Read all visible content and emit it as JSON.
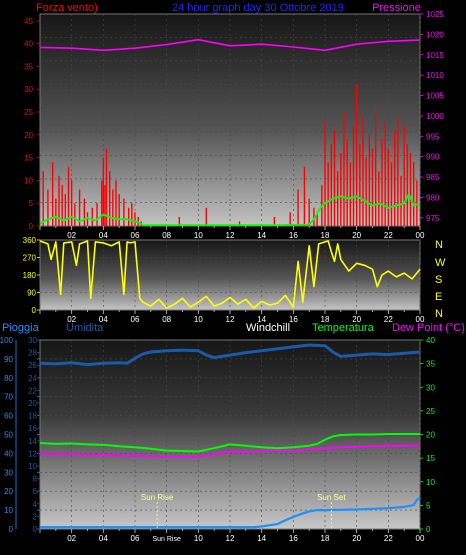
{
  "headers": {
    "wind_speed": "Forza vento)",
    "subtitle": "24 hour graph day 30 Ottobre 2019",
    "pressure": "Pressione",
    "rain": "Pioggia",
    "humidity": "Umidita",
    "windchill": "Windchill",
    "temperature": "Temperatura",
    "dew_point": "Dew Point (°C)",
    "sun_rise": "Sun Rise",
    "sun_set": "Sun Set"
  },
  "compass": [
    "N",
    "W",
    "S",
    "E",
    "N"
  ],
  "colors": {
    "wind": "#ff0000",
    "wind_avg": "#00ff00",
    "pressure": "#ff00ff",
    "direction": "#ffff00",
    "humidity": "#1a5aa8",
    "rain": "#1e90ff",
    "temperature": "#00ff00",
    "dew_point": "#ff00ff",
    "sun": "#ffff99"
  },
  "chart_data": [
    {
      "type": "line",
      "panel": "wind",
      "x_ticks": [
        "02",
        "04",
        "06",
        "08",
        "10",
        "12",
        "14",
        "16",
        "18",
        "20",
        "22",
        "00"
      ],
      "y_left_ticks": [
        "0",
        "5",
        "10",
        "15",
        "20",
        "25",
        "30",
        "35",
        "40",
        "45"
      ],
      "y_right_ticks": [
        "975",
        "980",
        "985",
        "990",
        "995",
        "1000",
        "1005",
        "1010",
        "1015",
        "1020",
        "1025"
      ],
      "ylim_left": [
        0,
        46.5
      ],
      "ylim_right": [
        973,
        1025
      ],
      "xlim": [
        0,
        24
      ],
      "series": [
        {
          "axis": "left",
          "color": "#ff0000",
          "style": "bars",
          "x": [
            0.2,
            0.5,
            0.8,
            1.0,
            1.2,
            1.4,
            1.6,
            1.8,
            2.0,
            2.2,
            2.5,
            2.8,
            3.0,
            3.3,
            3.6,
            3.9,
            4.0,
            4.1,
            4.2,
            4.4,
            4.6,
            4.8,
            5.0,
            5.3,
            5.6,
            5.8,
            6.0,
            6.2,
            6.4,
            8.8,
            10.5,
            12.6,
            14.8,
            15.8,
            16.3,
            16.7,
            17.0,
            17.3,
            17.5,
            17.8,
            18.0,
            18.2,
            18.4,
            18.6,
            18.8,
            19.0,
            19.2,
            19.4,
            19.6,
            19.8,
            20.0,
            20.2,
            20.4,
            20.6,
            20.8,
            21.0,
            21.2,
            21.4,
            21.6,
            21.8,
            22.0,
            22.2,
            22.4,
            22.6,
            22.8,
            23.0,
            23.2,
            23.4,
            23.6,
            23.8
          ],
          "y": [
            12,
            8,
            14,
            6,
            11,
            9,
            7,
            13,
            10,
            5,
            8,
            6,
            3,
            4,
            5,
            10,
            15,
            9,
            17,
            12,
            8,
            10,
            7,
            6,
            4,
            5,
            3,
            2,
            1,
            2,
            4,
            1,
            2,
            3,
            8,
            13,
            6,
            4,
            3,
            9,
            23,
            14,
            18,
            21,
            12,
            16,
            25,
            19,
            14,
            22,
            31,
            18,
            24,
            15,
            20,
            17,
            26,
            12,
            19,
            23,
            17,
            14,
            21,
            24,
            11,
            22,
            18,
            16,
            14,
            10
          ]
        },
        {
          "axis": "left",
          "color": "#00ff00",
          "style": "line",
          "x": [
            0,
            0.5,
            1,
            1.5,
            2,
            2.5,
            3,
            3.5,
            4,
            4.5,
            5,
            5.5,
            6,
            6.4,
            6.5,
            12,
            15,
            17,
            17.3,
            17.7,
            18,
            18.5,
            19,
            19.5,
            20,
            20.5,
            21,
            21.5,
            22,
            22.5,
            23,
            23.3,
            23.6,
            24
          ],
          "y": [
            0.5,
            1.5,
            2,
            1.2,
            2,
            1,
            1.8,
            1.2,
            2.5,
            1.8,
            1.5,
            1.5,
            1,
            0.5,
            0.2,
            0.2,
            0.2,
            0.3,
            1.5,
            4,
            5,
            6,
            6.5,
            6,
            6.5,
            5.5,
            4.5,
            5,
            4,
            4.5,
            5,
            7,
            4.5,
            5
          ]
        },
        {
          "axis": "right",
          "color": "#ff00ff",
          "style": "line",
          "x": [
            0,
            2,
            4,
            6,
            8,
            10,
            12,
            14,
            16,
            18,
            20,
            22,
            24
          ],
          "y": [
            1016.8,
            1016.6,
            1016.1,
            1016.6,
            1017.5,
            1018.7,
            1017.2,
            1017.6,
            1016.9,
            1016.1,
            1017.6,
            1018.3,
            1018.6
          ]
        }
      ]
    },
    {
      "type": "line",
      "panel": "wind_direction",
      "x_ticks": [
        "02",
        "04",
        "06",
        "08",
        "10",
        "12",
        "14",
        "16",
        "18",
        "20",
        "22",
        "00"
      ],
      "y_ticks": [
        "0",
        "90",
        "180",
        "270",
        "360"
      ],
      "ylim": [
        0,
        360
      ],
      "xlim": [
        0,
        24
      ],
      "series": [
        {
          "color": "#ffff00",
          "x": [
            0,
            0.5,
            0.7,
            1,
            1.3,
            1.5,
            2,
            2.3,
            2.5,
            3,
            3.2,
            3.5,
            4,
            4.5,
            5,
            5.3,
            5.5,
            5.7,
            6,
            6.3,
            6.5,
            7,
            7.5,
            8,
            8.5,
            9,
            9.5,
            10,
            10.5,
            11,
            11.5,
            12,
            12.5,
            13,
            13.5,
            14,
            14.5,
            15,
            15.5,
            16,
            16.3,
            16.6,
            17,
            17.3,
            17.6,
            18,
            18.2,
            18.4,
            18.6,
            18.8,
            19,
            19.5,
            20,
            20.5,
            21,
            21.3,
            21.6,
            22,
            22.5,
            23,
            23.5,
            24
          ],
          "y": [
            355,
            340,
            260,
            350,
            80,
            345,
            350,
            230,
            340,
            355,
            60,
            350,
            345,
            330,
            350,
            80,
            350,
            345,
            350,
            60,
            40,
            20,
            55,
            10,
            30,
            60,
            15,
            40,
            70,
            20,
            35,
            65,
            30,
            55,
            10,
            45,
            25,
            35,
            75,
            15,
            250,
            40,
            330,
            120,
            340,
            350,
            355,
            300,
            250,
            340,
            260,
            200,
            240,
            230,
            210,
            120,
            180,
            200,
            170,
            190,
            160,
            210
          ]
        }
      ]
    },
    {
      "type": "line",
      "panel": "climate",
      "x_ticks": [
        "02",
        "04",
        "06",
        "Sun Rise",
        "10",
        "12",
        "14",
        "16",
        "18",
        "20",
        "22",
        "00"
      ],
      "y_far_left_ticks": [
        "0",
        "10",
        "20",
        "30",
        "40",
        "50",
        "60",
        "70",
        "80",
        "90",
        "100"
      ],
      "y_left_ticks": [
        "0",
        "2",
        "4",
        "6",
        "8",
        "10",
        "12",
        "14",
        "16",
        "18",
        "20",
        "22",
        "24",
        "26",
        "28",
        "30"
      ],
      "y_right_ticks": [
        "0",
        "5",
        "10",
        "15",
        "20",
        "25",
        "30",
        "35",
        "40"
      ],
      "ylim_left": [
        0,
        30
      ],
      "ylim_right": [
        0,
        40
      ],
      "xlim": [
        0,
        24
      ],
      "annotations": [
        {
          "label": "Sun Rise",
          "x": 7.4
        },
        {
          "label": "Sun Set",
          "x": 18.4
        }
      ],
      "series": [
        {
          "name": "Umidita",
          "axis": "left",
          "color": "#1a5aa8",
          "x": [
            0,
            1,
            2,
            3,
            4,
            5,
            5.5,
            6,
            6.5,
            7,
            8,
            9,
            10,
            10.5,
            11,
            12,
            13,
            14,
            15,
            16,
            17,
            18,
            18.5,
            19,
            20,
            21,
            22,
            23,
            24
          ],
          "y": [
            26.3,
            26.2,
            26.4,
            26.1,
            26.3,
            26.4,
            26.3,
            27.1,
            27.8,
            28.1,
            28.3,
            28.4,
            28.3,
            27.6,
            27.2,
            27.6,
            28.0,
            28.3,
            28.6,
            28.9,
            29.2,
            29.1,
            28.1,
            27.4,
            27.6,
            27.8,
            27.7,
            27.9,
            28.1
          ]
        },
        {
          "name": "Temperatura",
          "axis": "right",
          "color": "#00ff00",
          "x": [
            0,
            1,
            2,
            3,
            4,
            5,
            6,
            7,
            8,
            9,
            10,
            11,
            12,
            13,
            14,
            15,
            16,
            17,
            17.5,
            18,
            18.5,
            19,
            20,
            21,
            22,
            23,
            24
          ],
          "y": [
            18.2,
            18.0,
            18.1,
            17.9,
            17.8,
            17.5,
            17.3,
            17.0,
            16.6,
            16.5,
            16.4,
            17.1,
            17.9,
            17.6,
            17.3,
            17.1,
            17.3,
            17.6,
            18.0,
            18.9,
            19.6,
            19.9,
            20.0,
            20.0,
            20.1,
            20.1,
            20.1
          ]
        },
        {
          "name": "Dew Point",
          "axis": "right",
          "color": "#ff00ff",
          "x": [
            0,
            1,
            2,
            3,
            4,
            5,
            6,
            7,
            8,
            9,
            10,
            11,
            12,
            13,
            14,
            15,
            16,
            17,
            18,
            19,
            20,
            21,
            22,
            23,
            24
          ],
          "y": [
            15.9,
            15.8,
            15.8,
            15.7,
            15.7,
            15.6,
            15.5,
            15.4,
            15.3,
            15.3,
            15.3,
            15.9,
            16.4,
            16.3,
            16.5,
            16.6,
            16.6,
            16.9,
            17.1,
            17.3,
            17.4,
            17.5,
            17.6,
            17.6,
            17.7
          ]
        },
        {
          "name": "Pioggia",
          "axis": "left",
          "color": "#1e90ff",
          "x": [
            0,
            13.5,
            14,
            15,
            15.5,
            16,
            16.5,
            17,
            17.5,
            18,
            20,
            21,
            22,
            23,
            23.6,
            23.8,
            24
          ],
          "y": [
            0.3,
            0.3,
            0.4,
            0.8,
            1.4,
            1.9,
            2.4,
            2.8,
            3.0,
            3.0,
            3.1,
            3.2,
            3.3,
            3.5,
            3.8,
            4.6,
            5.0
          ]
        }
      ]
    }
  ]
}
